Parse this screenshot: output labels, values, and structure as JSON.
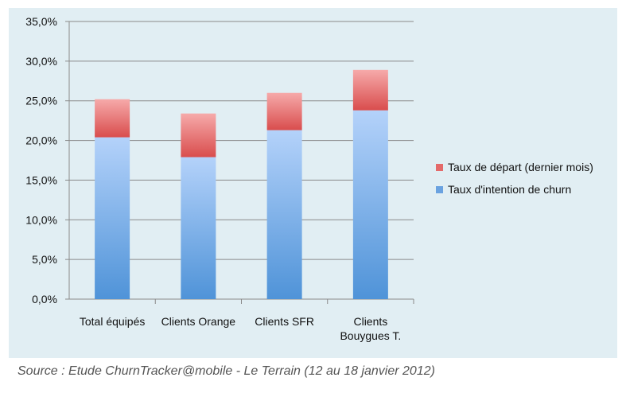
{
  "chart_data": {
    "type": "bar",
    "stacked": true,
    "categories": [
      "Total équipés",
      "Clients Orange",
      "Clients SFR",
      "Clients Bouygues T."
    ],
    "category_lines": [
      [
        "Total équipés"
      ],
      [
        "Clients Orange"
      ],
      [
        "Clients SFR"
      ],
      [
        "Clients",
        "Bouygues T."
      ]
    ],
    "series": [
      {
        "name": "Taux d'intention de churn",
        "values": [
          20.4,
          17.9,
          21.3,
          23.8
        ],
        "color_top": "#b4d2fa",
        "color_bottom": "#4f93d8"
      },
      {
        "name": "Taux de départ (dernier mois)",
        "values": [
          4.8,
          5.5,
          4.7,
          5.1
        ],
        "color_top": "#f6aaaa",
        "color_bottom": "#d94d4d"
      }
    ],
    "legend": {
      "placement": "right",
      "entries": [
        "Taux de départ (dernier mois)",
        "Taux d'intention de churn"
      ],
      "colors": [
        "#e46a6a",
        "#6aa2e0"
      ]
    },
    "yticks": [
      "0,0%",
      "5,0%",
      "10,0%",
      "15,0%",
      "20,0%",
      "25,0%",
      "30,0%",
      "35,0%"
    ],
    "ylim": [
      0,
      35
    ],
    "grid": true,
    "title": "",
    "xlabel": "",
    "ylabel": ""
  },
  "source": "Source : Etude ChurnTracker@mobile - Le Terrain (12 au 18 janvier 2012)"
}
